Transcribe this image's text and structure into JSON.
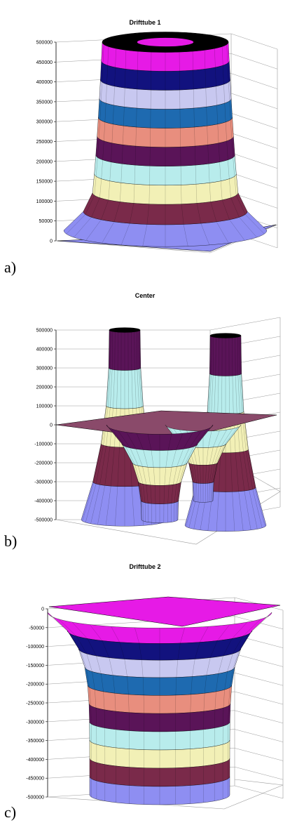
{
  "colors": {
    "bands": [
      "#8E8EF2",
      "#7A2A4A",
      "#F2F0B6",
      "#B8ECEC",
      "#5A1458",
      "#E88E7E",
      "#1E6AB0",
      "#C8C8F0",
      "#12127E",
      "#E61AE6"
    ],
    "axis": "#000000",
    "gridline": "#9A9A9A",
    "mesh": "#000000"
  },
  "chart_data": [
    {
      "type": "surface",
      "panel_label": "a)",
      "title": "Drifttube 1",
      "zlim": [
        0,
        500000
      ],
      "z_ticks": [
        "0",
        "50000",
        "100000",
        "150000",
        "200000",
        "250000",
        "300000",
        "350000",
        "400000",
        "450000",
        "500000"
      ],
      "shape": "single cylindrical plateau rising from 0 at the edges to 500000 at the top, with a ring-shaped (annular) top surface",
      "band_step": 50000,
      "grid": true
    },
    {
      "type": "surface",
      "panel_label": "b)",
      "title": "Center",
      "zlim": [
        -500000,
        500000
      ],
      "z_ticks": [
        "-500000",
        "-400000",
        "-300000",
        "-200000",
        "-100000",
        "0",
        "100000",
        "200000",
        "300000",
        "400000",
        "500000"
      ],
      "shape": "flat sheet at 0 with two positive peaks reaching 500000 at the back and two negative wells reaching -500000 at the front",
      "band_step": 100000,
      "grid": true
    },
    {
      "type": "surface",
      "panel_label": "c)",
      "title": "Drifttube 2",
      "zlim": [
        -500000,
        0
      ],
      "z_ticks": [
        "0",
        "-50000",
        "-100000",
        "-150000",
        "-200000",
        "-250000",
        "-300000",
        "-350000",
        "-400000",
        "-450000",
        "-500000"
      ],
      "shape": "single cylindrical well dropping from 0 at the edges to -500000 at the bottom",
      "band_step": 50000,
      "grid": true
    }
  ]
}
